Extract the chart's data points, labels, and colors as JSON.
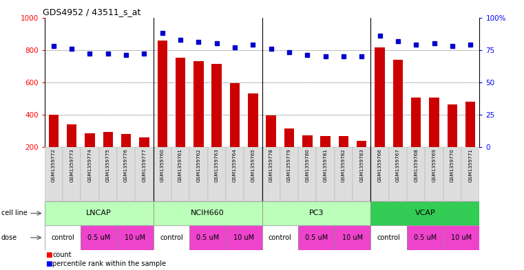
{
  "title": "GDS4952 / 43511_s_at",
  "samples": [
    "GSM1359772",
    "GSM1359773",
    "GSM1359774",
    "GSM1359775",
    "GSM1359776",
    "GSM1359777",
    "GSM1359760",
    "GSM1359761",
    "GSM1359762",
    "GSM1359763",
    "GSM1359764",
    "GSM1359765",
    "GSM1359778",
    "GSM1359779",
    "GSM1359780",
    "GSM1359781",
    "GSM1359782",
    "GSM1359783",
    "GSM1359766",
    "GSM1359767",
    "GSM1359768",
    "GSM1359769",
    "GSM1359770",
    "GSM1359771"
  ],
  "counts": [
    400,
    340,
    285,
    295,
    280,
    260,
    860,
    750,
    730,
    715,
    595,
    530,
    395,
    315,
    275,
    270,
    270,
    240,
    815,
    740,
    505,
    505,
    465,
    480
  ],
  "percentiles": [
    78,
    76,
    72,
    72,
    71,
    72,
    88,
    83,
    81,
    80,
    77,
    79,
    76,
    73,
    71,
    70,
    70,
    70,
    86,
    82,
    79,
    80,
    78,
    79
  ],
  "cell_line_info": [
    {
      "name": "LNCAP",
      "start": 0,
      "end": 5,
      "color": "#bbffbb"
    },
    {
      "name": "NCIH660",
      "start": 6,
      "end": 11,
      "color": "#bbffbb"
    },
    {
      "name": "PC3",
      "start": 12,
      "end": 17,
      "color": "#bbffbb"
    },
    {
      "name": "VCAP",
      "start": 18,
      "end": 23,
      "color": "#33cc55"
    }
  ],
  "dose_per_sample": [
    "control",
    "control",
    "0.5 uM",
    "0.5 uM",
    "10 uM",
    "10 uM",
    "control",
    "control",
    "0.5 uM",
    "0.5 uM",
    "10 uM",
    "10 uM",
    "control",
    "control",
    "0.5 uM",
    "0.5 uM",
    "10 uM",
    "10 uM",
    "control",
    "control",
    "0.5 uM",
    "0.5 uM",
    "10 uM",
    "10 uM"
  ],
  "dose_colors": {
    "control": "#ffffff",
    "0.5 uM": "#ee44cc",
    "10 uM": "#ee44cc"
  },
  "bar_color": "#cc0000",
  "dot_color": "#0000cc",
  "ylim_left": [
    200,
    1000
  ],
  "ylim_right": [
    0,
    100
  ],
  "yticks_left": [
    200,
    400,
    600,
    800,
    1000
  ],
  "yticks_right": [
    0,
    25,
    50,
    75,
    100
  ],
  "grid_values": [
    400,
    600,
    800
  ],
  "group_dividers": [
    5.5,
    11.5,
    17.5
  ],
  "bg_color": "#ffffff",
  "plot_bg": "#ffffff",
  "label_bg": "#dddddd"
}
